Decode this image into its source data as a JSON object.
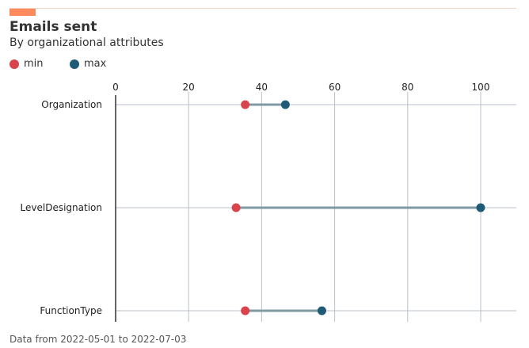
{
  "header": {
    "title": "Emails sent",
    "subtitle": "By organizational attributes"
  },
  "legend": {
    "items": [
      {
        "label": "min",
        "color": "#d9434b"
      },
      {
        "label": "max",
        "color": "#1e5b77"
      }
    ]
  },
  "footer": {
    "text": "Data from 2022-05-01 to 2022-07-03"
  },
  "chart_data": {
    "type": "dumbbell",
    "title": "Emails sent",
    "subtitle": "By organizational attributes",
    "xlabel": "",
    "ylabel": "",
    "xlim": [
      0,
      110
    ],
    "xticks": [
      0,
      20,
      40,
      60,
      80,
      100
    ],
    "grid": true,
    "legend_position": "top-left",
    "categories": [
      "Organization",
      "LevelDesignation",
      "FunctionType"
    ],
    "series": [
      {
        "name": "min",
        "color": "#d9434b",
        "values": [
          35.5,
          33,
          35.5
        ]
      },
      {
        "name": "max",
        "color": "#1e5b77",
        "values": [
          46.5,
          100,
          56.5
        ]
      }
    ],
    "connector_color": "#7f9aa3",
    "grid_color": "#b8c2c8"
  }
}
